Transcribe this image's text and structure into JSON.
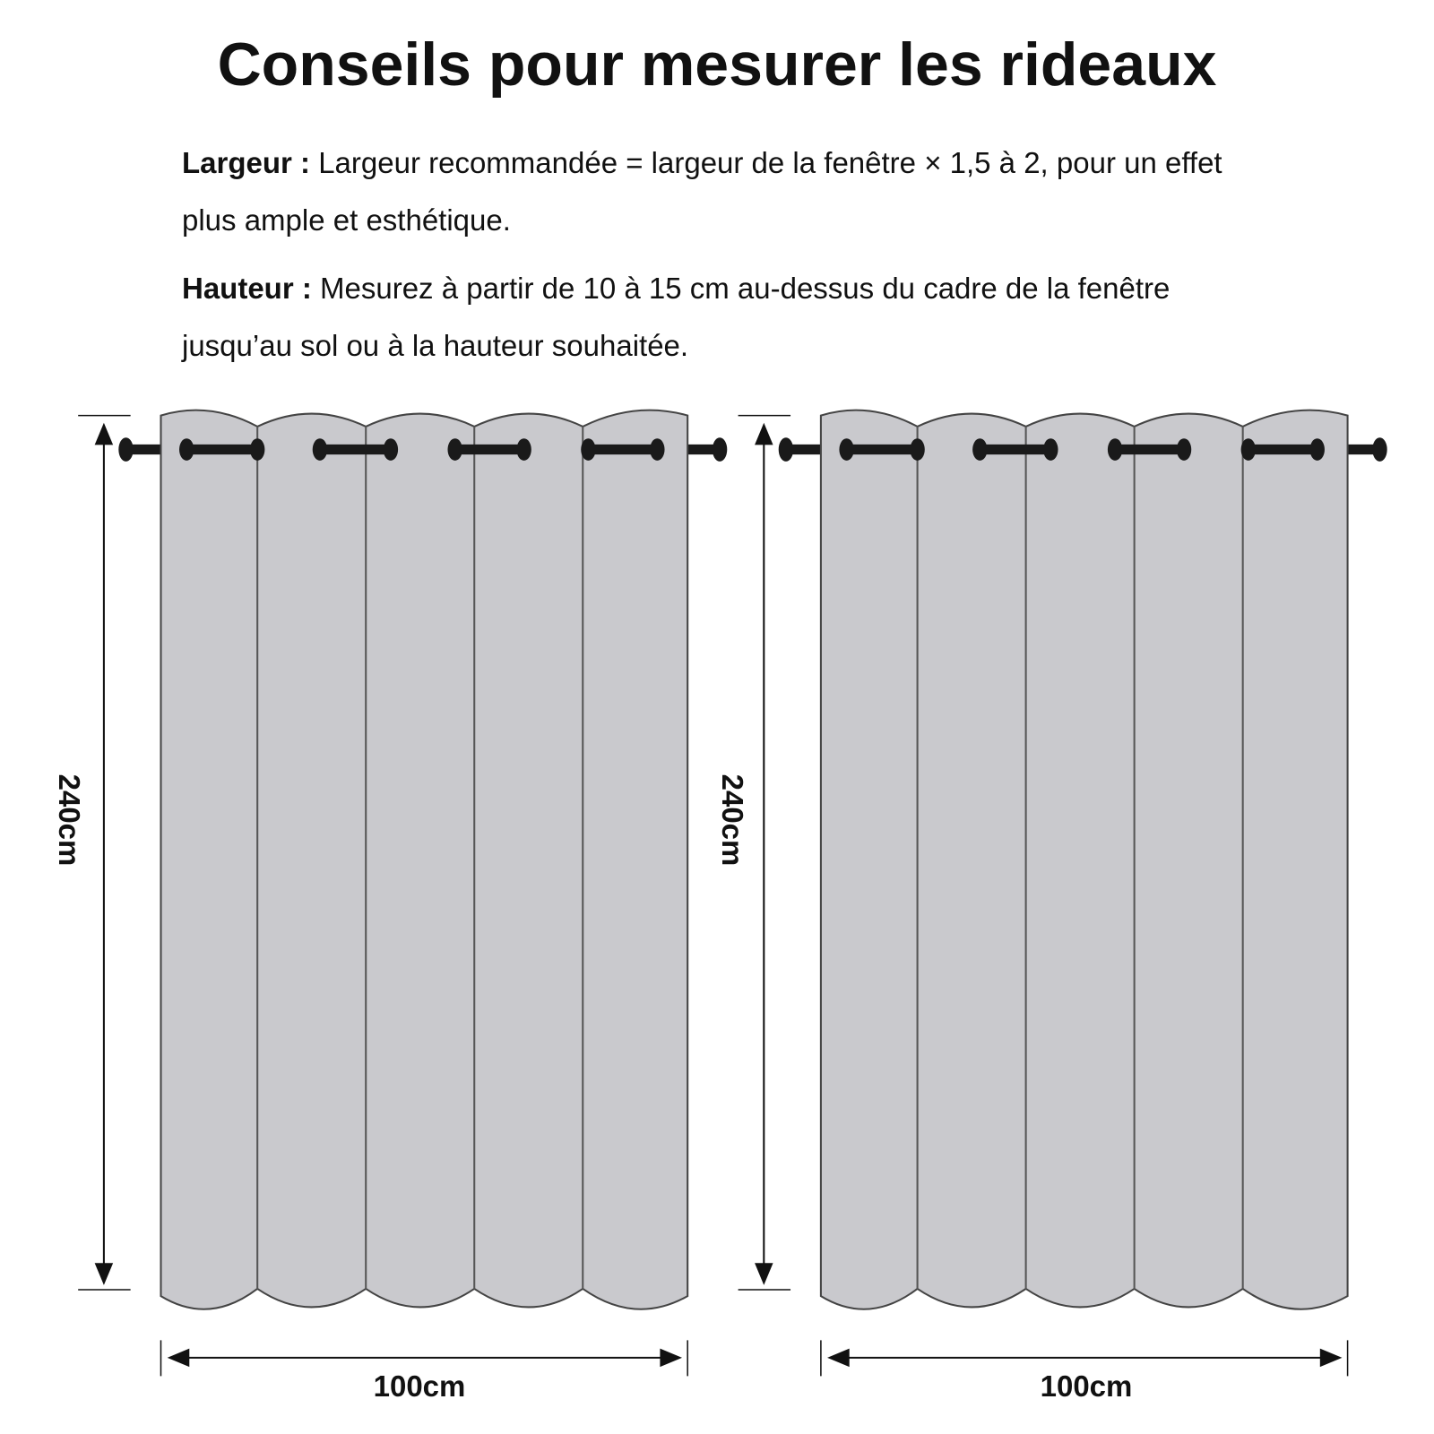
{
  "title": "Conseils pour mesurer les rideaux",
  "tips": [
    {
      "label": "Largeur :",
      "text": "Largeur recommandée = largeur de la fenêtre × 1,5 à 2, pour un effet plus ample et esthétique."
    },
    {
      "label": "Hauteur :",
      "text": "Mesurez à partir de 10 à 15 cm au-dessus du cadre de la fenêtre jusqu’au sol ou à la hauteur souhaitée."
    }
  ],
  "curtains": [
    {
      "height": "240cm",
      "width": "100cm"
    },
    {
      "height": "240cm",
      "width": "100cm"
    }
  ]
}
